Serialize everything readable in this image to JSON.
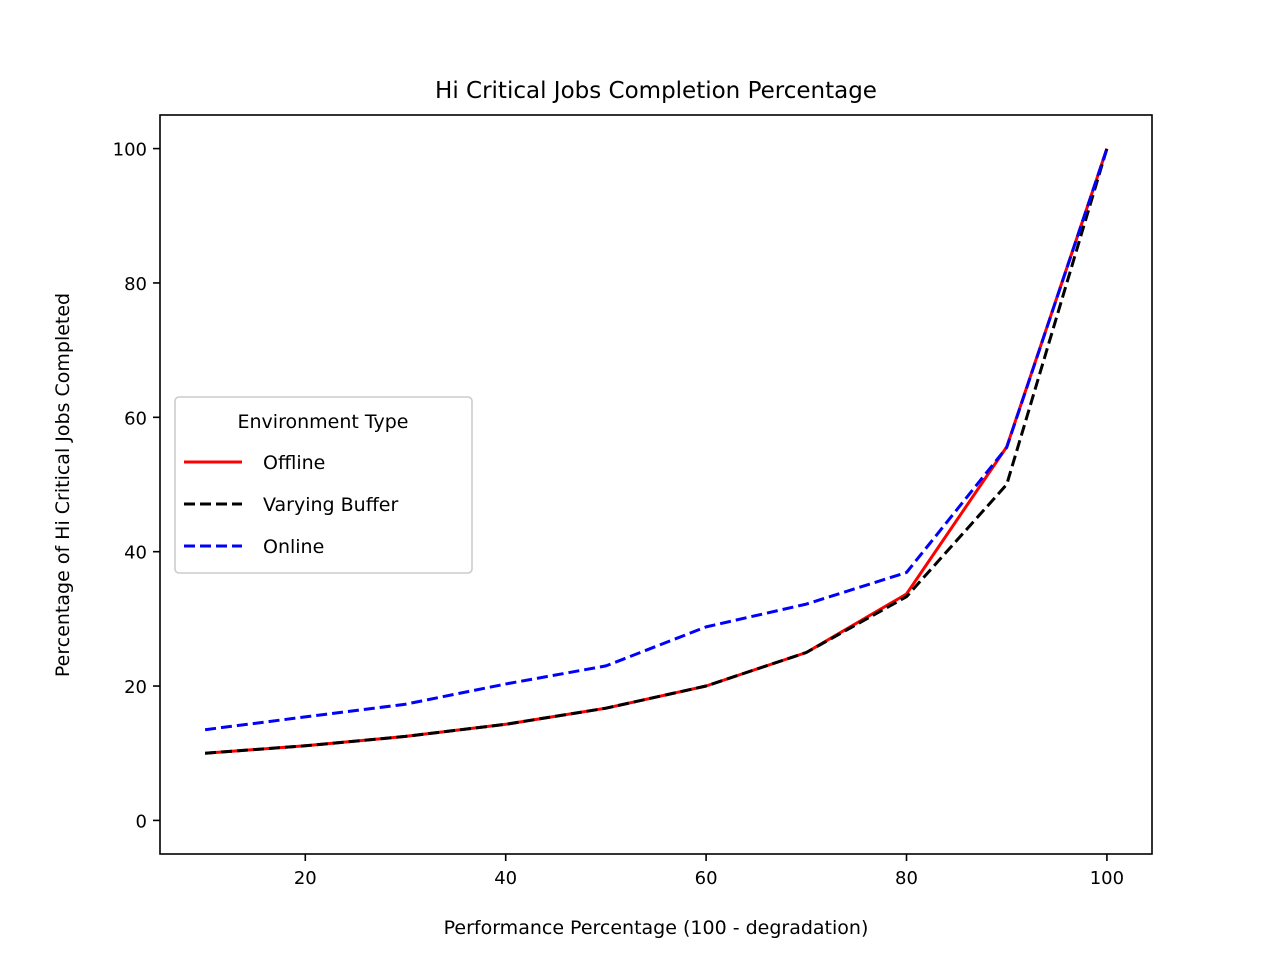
{
  "chart_data": {
    "type": "line",
    "title": "Hi Critical Jobs Completion Percentage",
    "xlabel": "Performance Percentage (100 - degradation)",
    "ylabel": "Percentage of Hi Critical Jobs Completed",
    "xlim": [
      5.5,
      104.5
    ],
    "ylim": [
      -5,
      105
    ],
    "xticks": [
      20,
      40,
      60,
      80,
      100
    ],
    "yticks": [
      0,
      20,
      40,
      60,
      80,
      100
    ],
    "x": [
      10,
      20,
      30,
      40,
      50,
      60,
      70,
      80,
      90,
      100
    ],
    "series": [
      {
        "name": "Offline",
        "color": "#ff0000",
        "style": "solid",
        "values": [
          10.0,
          11.1,
          12.5,
          14.3,
          16.7,
          20.0,
          25.0,
          33.7,
          55.6,
          100.0
        ]
      },
      {
        "name": "Varying Buffer",
        "color": "#000000",
        "style": "dashed",
        "values": [
          10.0,
          11.1,
          12.5,
          14.3,
          16.7,
          20.0,
          25.0,
          33.3,
          50.0,
          100.0
        ]
      },
      {
        "name": "Online",
        "color": "#0000ff",
        "style": "dashed",
        "values": [
          13.5,
          15.4,
          17.3,
          20.3,
          23.0,
          28.8,
          32.2,
          36.9,
          55.5,
          100.0
        ]
      }
    ],
    "legend": {
      "title": "Environment Type",
      "placement": "center-left"
    },
    "grid": false
  }
}
